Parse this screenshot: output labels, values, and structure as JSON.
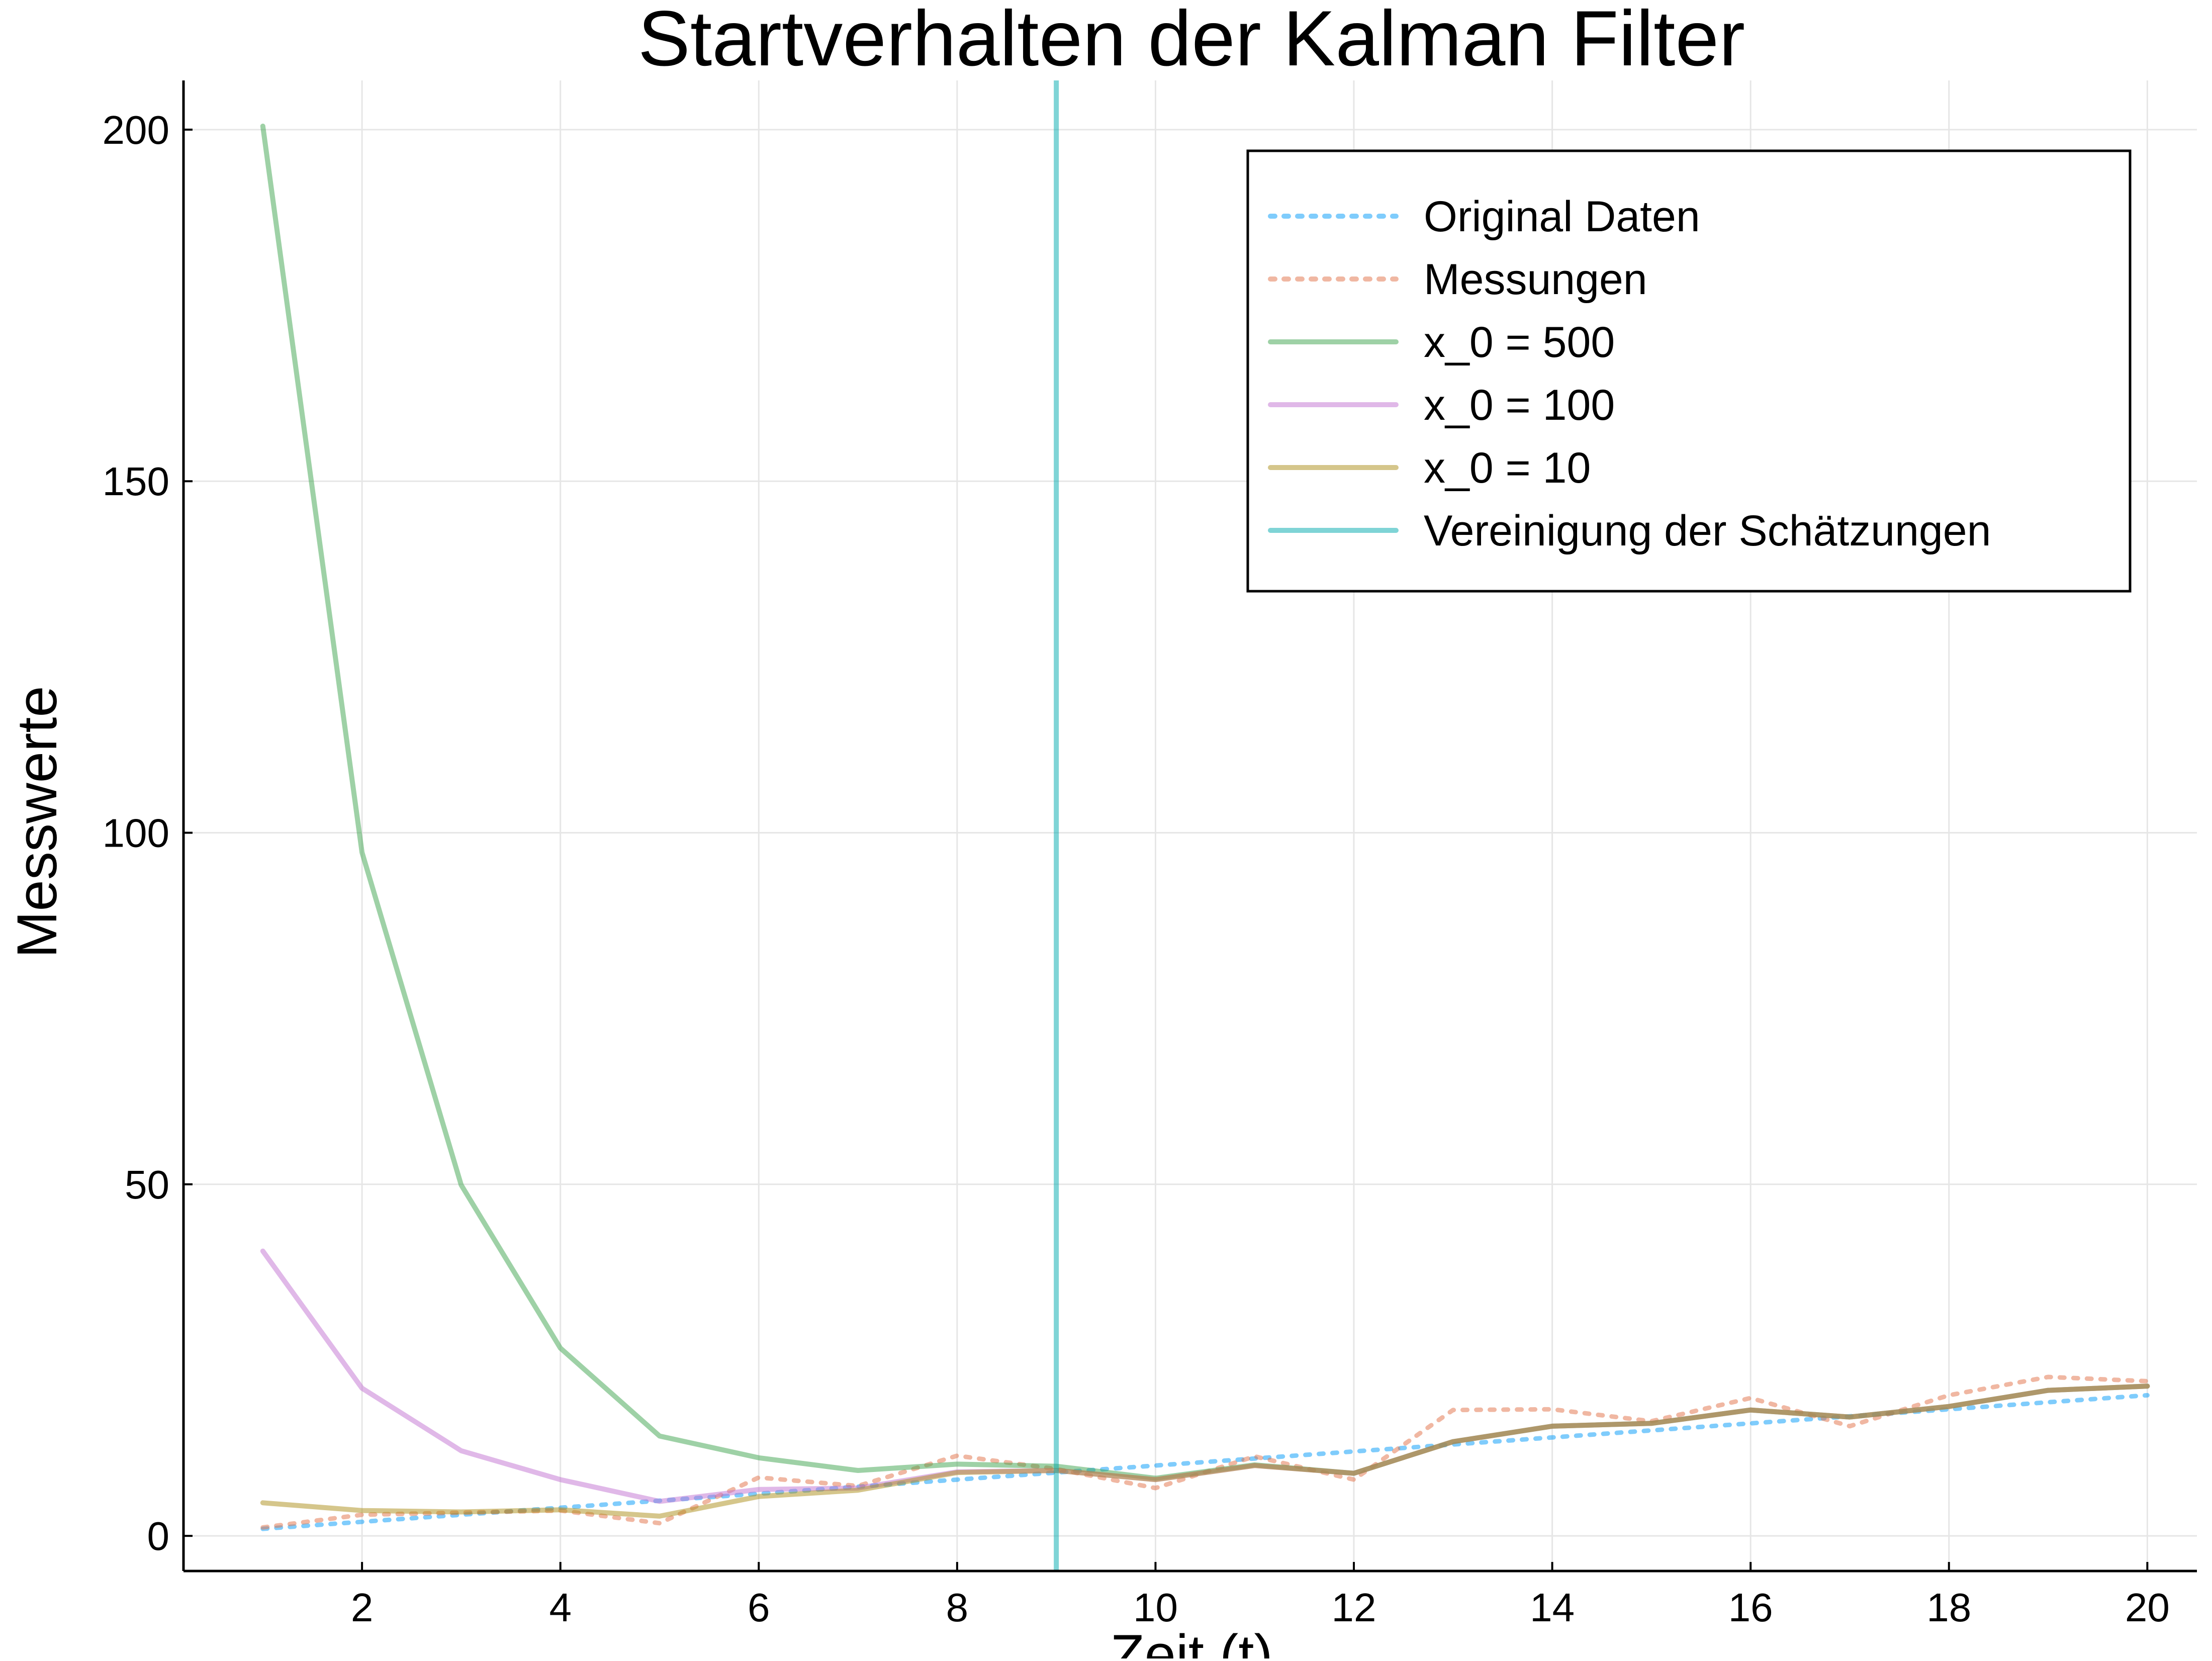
{
  "chart_data": {
    "type": "line",
    "title": "Startverhalten der Kalman Filter",
    "xlabel": "Zeit (t)",
    "ylabel": "Messwerte",
    "xlim": [
      0.2,
      20.5
    ],
    "ylim": [
      -5,
      207
    ],
    "xticks": [
      2,
      4,
      6,
      8,
      10,
      12,
      14,
      16,
      18,
      20
    ],
    "yticks": [
      0,
      50,
      100,
      150,
      200
    ],
    "grid": true,
    "legend_position": "top-right",
    "x": [
      1,
      2,
      3,
      4,
      5,
      6,
      7,
      8,
      9,
      10,
      11,
      12,
      13,
      14,
      15,
      16,
      17,
      18,
      19,
      20
    ],
    "series": [
      {
        "name": "Original Daten",
        "style": "dotted",
        "color": "#009AFA",
        "values": [
          1,
          2,
          3,
          4,
          5,
          6,
          7,
          8,
          9,
          10,
          11,
          12,
          13,
          14,
          15,
          16,
          17,
          18,
          19,
          20
        ]
      },
      {
        "name": "Messungen",
        "style": "dotted",
        "color": "#E26F46",
        "values": [
          1.2,
          3.0,
          3.3,
          3.6,
          1.8,
          8.3,
          7.1,
          11.4,
          9.5,
          6.8,
          11.3,
          8.0,
          17.9,
          18.0,
          16.3,
          19.6,
          15.6,
          20.0,
          22.6,
          22.0
        ]
      },
      {
        "name": "x_0 = 500",
        "style": "solid",
        "color": "#3DA44D",
        "values": [
          200.5,
          97.2,
          49.9,
          26.7,
          14.2,
          11.1,
          9.3,
          10.2,
          9.9,
          8.2,
          10.1,
          8.9,
          13.4,
          15.6,
          16.0,
          17.9,
          16.9,
          18.4,
          20.7,
          21.3
        ]
      },
      {
        "name": "x_0 = 100",
        "style": "solid",
        "color": "#C271D2",
        "values": [
          40.5,
          21.0,
          12.1,
          8.0,
          4.9,
          6.6,
          6.8,
          9.1,
          9.3,
          8.0,
          10.0,
          8.9,
          13.4,
          15.6,
          16.0,
          17.9,
          16.9,
          18.4,
          20.7,
          21.3
        ]
      },
      {
        "name": "x_0 = 10",
        "style": "solid",
        "color": "#AC8D18",
        "values": [
          4.7,
          3.6,
          3.4,
          3.7,
          2.8,
          5.6,
          6.5,
          9.0,
          9.3,
          8.0,
          10.0,
          8.9,
          13.4,
          15.6,
          16.0,
          17.9,
          16.9,
          18.4,
          20.7,
          21.3
        ]
      },
      {
        "name": "Vereinigung der Schätzungen",
        "style": "vline",
        "color": "#00A9AD",
        "x_value": 9
      }
    ]
  }
}
